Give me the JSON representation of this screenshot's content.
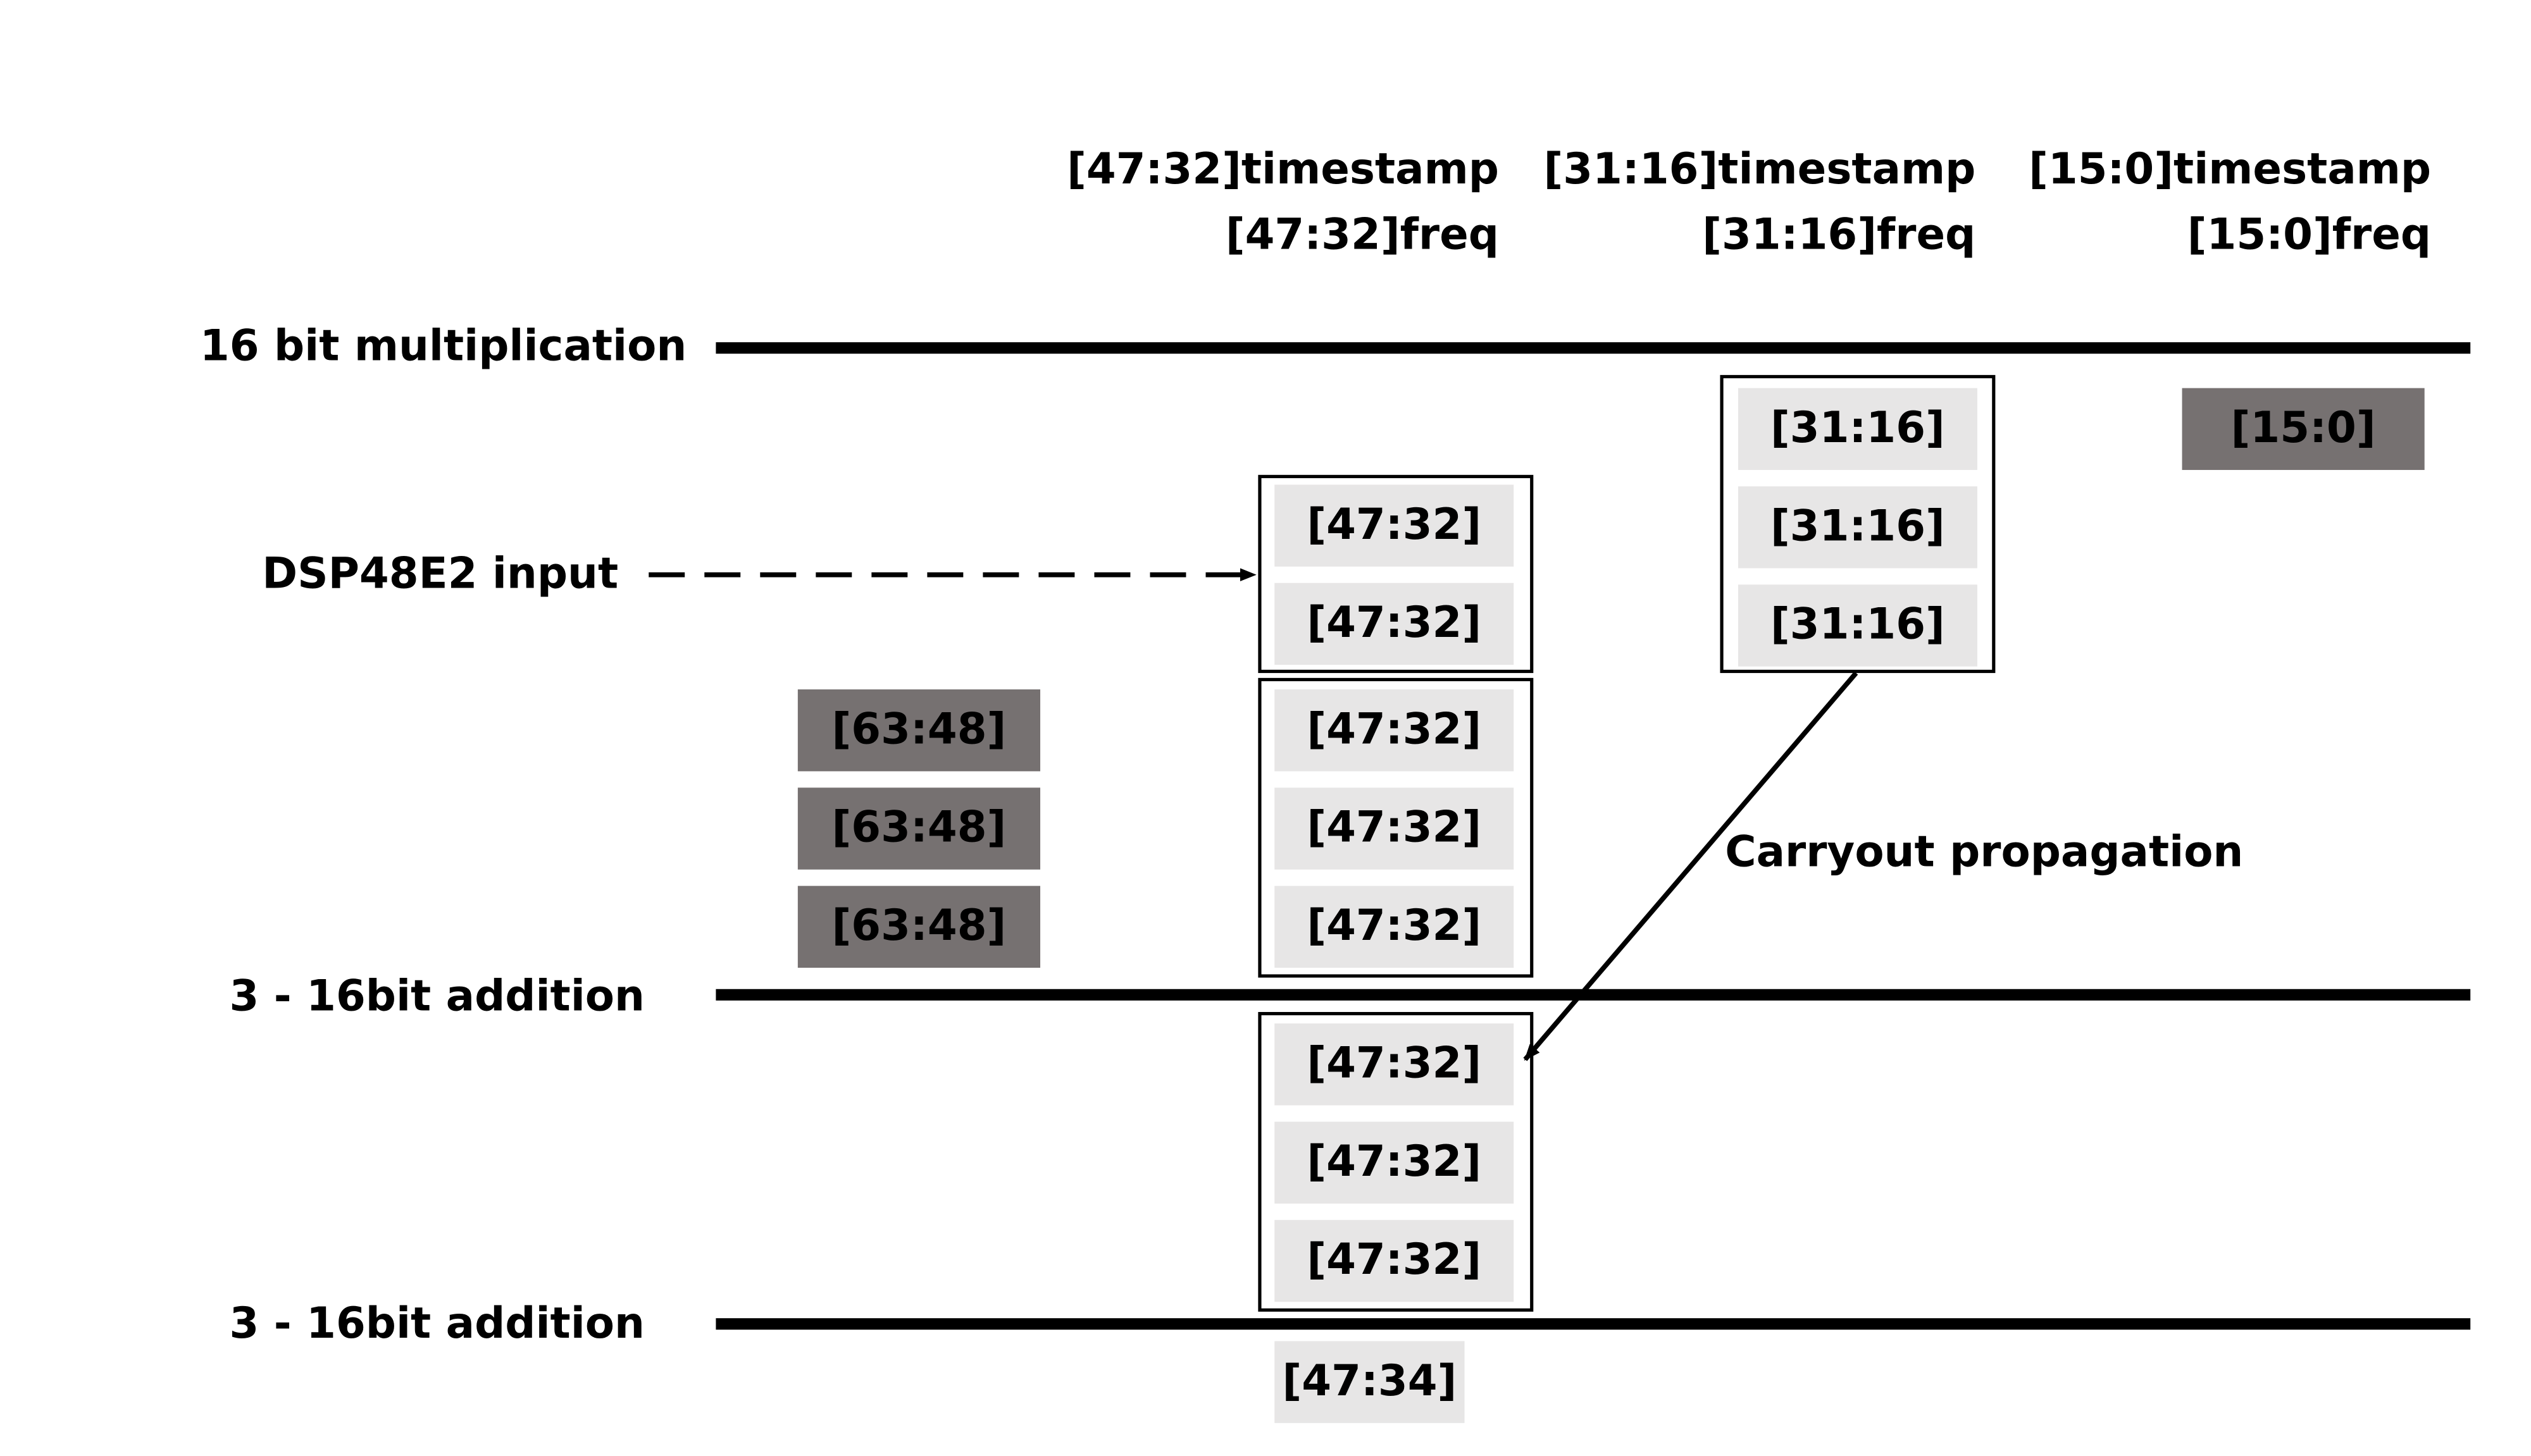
{
  "columns": [
    {
      "line1": "[47:32]timestamp",
      "line2": "[47:32]freq"
    },
    {
      "line1": "[31:16]timestamp",
      "line2": "[31:16]freq"
    },
    {
      "line1": "[15:0]timestamp",
      "line2": "[15:0]freq"
    }
  ],
  "stages": [
    {
      "label": "16 bit multiplication"
    },
    {
      "label": "3 - 16bit addition"
    },
    {
      "label": "3 - 16bit addition"
    }
  ],
  "dsp_input_label": "DSP48E2 input",
  "carryout_label": "Carryout propagation",
  "group_mid_top": [
    "[47:32]",
    "[47:32]"
  ],
  "group_mid_mid": [
    "[47:32]",
    "[47:32]",
    "[47:32]"
  ],
  "group_right": [
    "[31:16]",
    "[31:16]",
    "[31:16]"
  ],
  "group_mid_bottom": [
    "[47:32]",
    "[47:32]",
    "[47:32]"
  ],
  "dark_left": [
    "[63:48]",
    "[63:48]",
    "[63:48]"
  ],
  "dark_right": "[15:0]",
  "result": "[47:34]",
  "colors": {
    "light_cell": "#e7e6e6",
    "dark_cell": "#767171",
    "line": "#000000"
  }
}
